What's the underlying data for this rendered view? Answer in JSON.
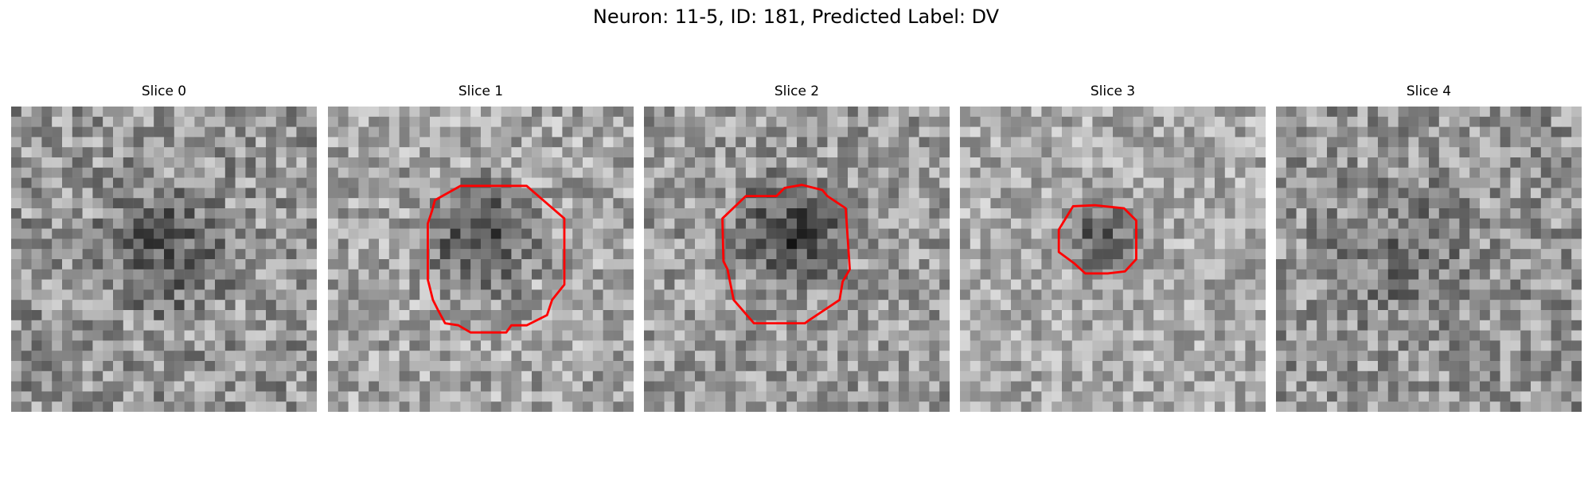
{
  "figure": {
    "title": "Neuron: 11-5, ID: 181, Predicted Label: DV"
  },
  "panels": [
    {
      "title": "Slice 0",
      "has_contour": false
    },
    {
      "title": "Slice 1",
      "has_contour": true
    },
    {
      "title": "Slice 2",
      "has_contour": true
    },
    {
      "title": "Slice 3",
      "has_contour": true
    },
    {
      "title": "Slice 4",
      "has_contour": false
    }
  ],
  "colors": {
    "contour": "#ff0000",
    "background": "#ffffff"
  }
}
